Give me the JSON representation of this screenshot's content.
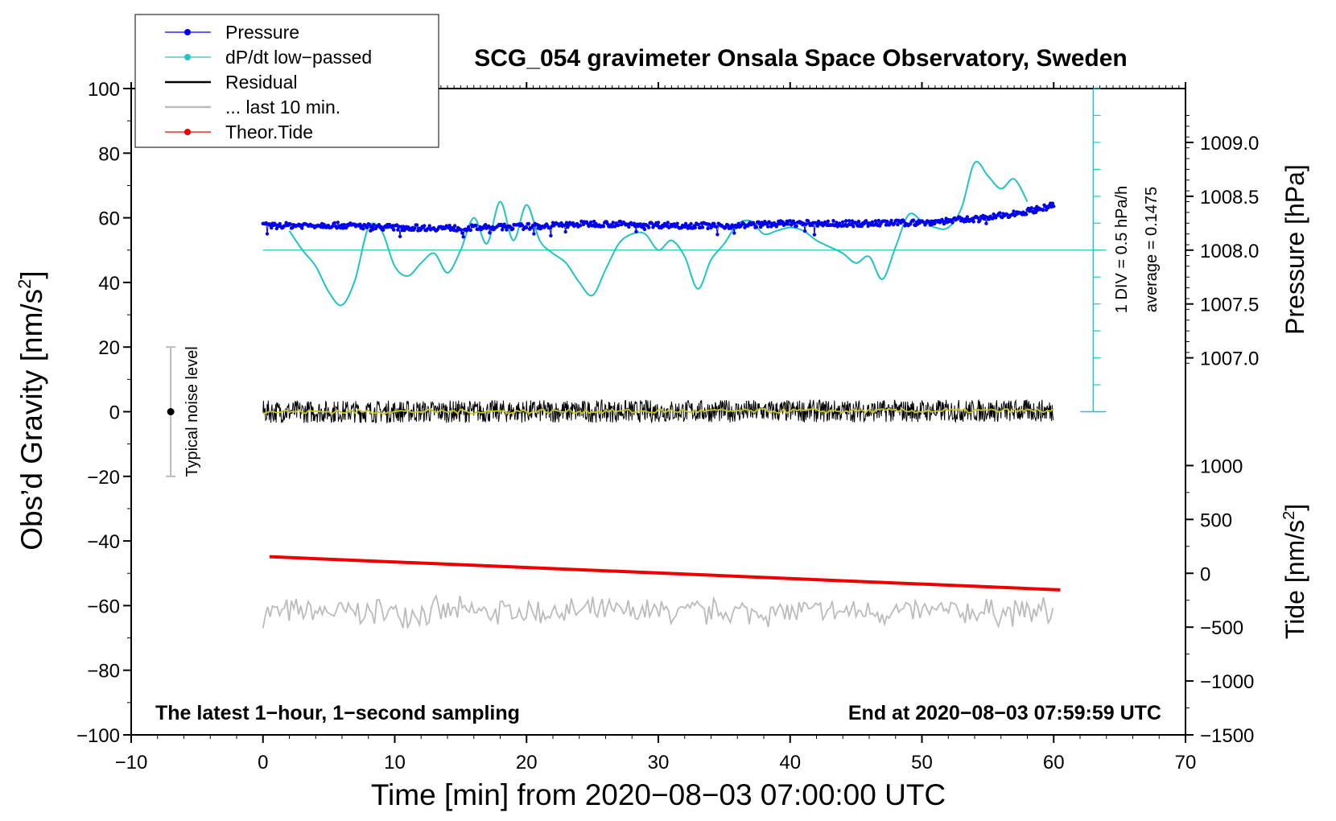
{
  "chart_data": {
    "type": "line",
    "title": "SCG_054 gravimeter Onsala Space Observatory, Sweden",
    "xlabel": "Time [min] from 2020−08−03 07:00:00 UTC",
    "ylabel_left": "Obs’d Gravity [nm/s",
    "ylabel_left_sup": "2",
    "ylabel_left_end": "]",
    "ylabel_right_pressure": "Pressure [hPa]",
    "ylabel_right_tide": "Tide [nm/s",
    "ylabel_right_tide_sup": "2",
    "ylabel_right_tide_end": "]",
    "xlim": [
      -10,
      70
    ],
    "ylim": [
      -100,
      100
    ],
    "x_ticks": [
      -10,
      0,
      10,
      20,
      30,
      40,
      50,
      60,
      70
    ],
    "x_tick_labels": [
      "−10",
      "0",
      "10",
      "20",
      "30",
      "40",
      "50",
      "60",
      "70"
    ],
    "y_ticks": [
      -100,
      -80,
      -60,
      -40,
      -20,
      0,
      20,
      40,
      60,
      80,
      100
    ],
    "y_tick_labels": [
      "−100",
      "−80",
      "−60",
      "−40",
      "−20",
      "0",
      "20",
      "40",
      "60",
      "80",
      "100"
    ],
    "pressure_axis": {
      "ticks": [
        1007.0,
        1007.5,
        1008.0,
        1008.5,
        1009.0
      ],
      "tick_labels": [
        "1007.0",
        "1007.5",
        "1008.0",
        "1008.5",
        "1009.0"
      ],
      "note": "1008.0 hPa at gravity 50; 0.5 hPa per 16.67 gravity units"
    },
    "tide_axis": {
      "ticks": [
        -1500,
        -1000,
        -500,
        0,
        500,
        1000
      ],
      "tick_labels": [
        "−1500",
        "−1000",
        "−500",
        "0",
        "500",
        "1000"
      ],
      "note": "-1500 at gravity -100; 500 per 16.67 gravity units"
    },
    "legend": {
      "placement": "top-left",
      "entries": [
        {
          "label": "Pressure",
          "color": "#0000ee",
          "style": "line-dot"
        },
        {
          "label": "dP/dt low−passed",
          "color": "#20c4c4",
          "style": "line-dot"
        },
        {
          "label": "Residual",
          "color": "#000000",
          "style": "line"
        },
        {
          "label": "... last 10 min.",
          "color": "#bbbbbb",
          "style": "line"
        },
        {
          "label": "Theor.Tide",
          "color": "#ee0000",
          "style": "line-dot"
        }
      ]
    },
    "series": [
      {
        "name": "Pressure (gravity-axis units)",
        "color": "#0000ee",
        "x": [
          0,
          5,
          10,
          15,
          20,
          25,
          30,
          35,
          40,
          45,
          50,
          55,
          58,
          60
        ],
        "y": [
          57.5,
          57.8,
          57,
          56.8,
          57.3,
          58.2,
          57.8,
          57.5,
          58.3,
          58.2,
          58.5,
          60,
          62,
          63.8
        ]
      },
      {
        "name": "dP/dt low-passed (gravity-axis units)",
        "color": "#20c4c4",
        "x": [
          2,
          3,
          4,
          5,
          6,
          7,
          8,
          9,
          10,
          11,
          12,
          13,
          14,
          15,
          16,
          17,
          18,
          19,
          20,
          21,
          22,
          23,
          24,
          25,
          26,
          27,
          28,
          29,
          30,
          31,
          32,
          33,
          34,
          35,
          36,
          37,
          38,
          39,
          40,
          41,
          42,
          43,
          44,
          45,
          46,
          47,
          48,
          49,
          50,
          51,
          52,
          53,
          54,
          55,
          56,
          57,
          58
        ],
        "y": [
          56,
          50,
          45,
          37,
          33,
          41,
          57,
          56,
          45,
          42,
          46,
          49,
          43,
          50,
          60,
          52,
          65,
          53,
          64,
          53,
          49,
          46,
          40,
          36,
          44,
          52,
          55,
          55,
          50,
          53,
          48,
          38,
          47,
          52,
          58,
          59,
          55,
          56,
          57,
          56,
          53,
          51,
          49,
          46,
          48,
          41,
          51,
          61,
          59,
          57,
          57,
          63,
          77,
          73,
          69,
          72,
          65
        ]
      },
      {
        "name": "Residual",
        "color": "#000000",
        "x": [
          0,
          60
        ],
        "y": [
          0,
          0.3
        ],
        "amplitude": 3.5
      },
      {
        "name": "Residual smoothed",
        "color": "#c8c820",
        "x": [
          0,
          60
        ],
        "y": [
          0,
          0.3
        ]
      },
      {
        "name": "... last 10 min.",
        "color": "#bbbbbb",
        "x": [
          0,
          60
        ],
        "y": [
          -62,
          -62
        ],
        "amplitude": 3.5
      },
      {
        "name": "Theor.Tide (nm/s²)",
        "color": "#ee0000",
        "x": [
          0.5,
          60.5
        ],
        "y": [
          154,
          -154
        ]
      }
    ],
    "dpdt_scale": {
      "label": "1 DIV = 0.5 hPa/h",
      "average_label": "average = 0.1475",
      "baseline_gravity": 50,
      "x_position_min": 63,
      "y_range_gravity": [
        0,
        100
      ]
    },
    "noise_indicator": {
      "label": "Typical noise level",
      "x": -7,
      "y_range": [
        -20,
        20
      ]
    },
    "footer_left": "The latest 1−hour, 1−second sampling",
    "footer_right": "End at 2020−08−03 07:59:59 UTC"
  }
}
